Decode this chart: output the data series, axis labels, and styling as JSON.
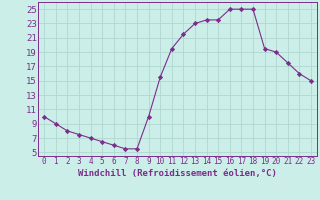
{
  "x": [
    0,
    1,
    2,
    3,
    4,
    5,
    6,
    7,
    8,
    9,
    10,
    11,
    12,
    13,
    14,
    15,
    16,
    17,
    18,
    19,
    20,
    21,
    22,
    23
  ],
  "y": [
    10,
    9,
    8,
    7.5,
    7,
    6.5,
    6,
    5.5,
    5.5,
    10,
    15.5,
    19.5,
    21.5,
    23,
    23.5,
    23.5,
    25,
    25,
    25,
    19.5,
    19,
    17.5,
    16,
    15
  ],
  "line_color": "#7b2d8b",
  "marker": "D",
  "marker_size": 2.2,
  "background_color": "#cceee8",
  "grid_color": "#b0d8d0",
  "xlabel": "Windchill (Refroidissement éolien,°C)",
  "ylim": [
    4.5,
    26
  ],
  "xlim": [
    -0.5,
    23.5
  ],
  "yticks": [
    5,
    7,
    9,
    11,
    13,
    15,
    17,
    19,
    21,
    23,
    25
  ],
  "xticks": [
    0,
    1,
    2,
    3,
    4,
    5,
    6,
    7,
    8,
    9,
    10,
    11,
    12,
    13,
    14,
    15,
    16,
    17,
    18,
    19,
    20,
    21,
    22,
    23
  ],
  "tick_color": "#7b2d8b",
  "spine_color": "#7b2d8b",
  "xlabel_fontsize": 6.5,
  "ytick_fontsize": 6.5,
  "xtick_fontsize": 5.5
}
